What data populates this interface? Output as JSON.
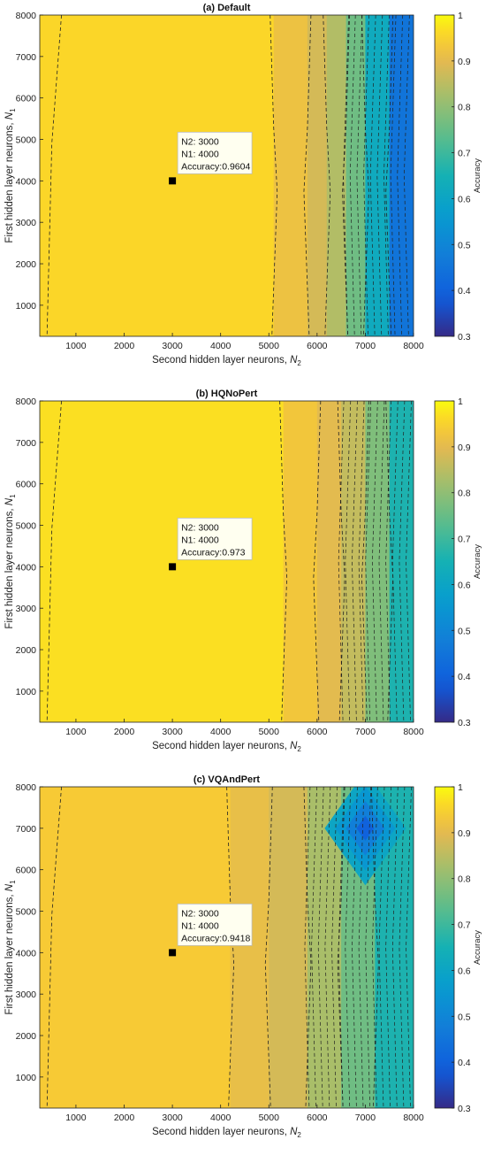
{
  "chart_data": [
    {
      "type": "contour",
      "title": "(a) Default",
      "xlabel": "Second hidden layer neurons,",
      "xlabel_sym": "N",
      "xlabel_sub": "2",
      "ylabel": "First hidden layer neurons,",
      "ylabel_sym": "N",
      "ylabel_sub": "1",
      "xlim": [
        250,
        8000
      ],
      "ylim": [
        250,
        8000
      ],
      "xticks": [
        1000,
        2000,
        3000,
        4000,
        5000,
        6000,
        7000,
        8000
      ],
      "yticks": [
        1000,
        2000,
        3000,
        4000,
        5000,
        6000,
        7000,
        8000
      ],
      "colorbar": {
        "label": "Accuracy",
        "range": [
          0.3,
          1
        ],
        "ticks": [
          "0.3",
          "0.4",
          "0.5",
          "0.6",
          "0.7",
          "0.8",
          "0.9",
          "1"
        ]
      },
      "bands": [
        {
          "x_start": 250,
          "x_end": 5100,
          "accuracy": 0.96
        },
        {
          "x_start": 5100,
          "x_end": 5800,
          "accuracy": 0.92
        },
        {
          "x_start": 5800,
          "x_end": 6200,
          "accuracy": 0.88
        },
        {
          "x_start": 6200,
          "x_end": 6600,
          "accuracy": 0.84
        },
        {
          "x_start": 6600,
          "x_end": 7000,
          "accuracy": 0.76
        },
        {
          "x_start": 7000,
          "x_end": 7500,
          "accuracy": 0.62
        },
        {
          "x_start": 7500,
          "x_end": 8000,
          "accuracy": 0.45
        }
      ],
      "datatip": {
        "x": 3000,
        "y": 4000,
        "lines": [
          "N2: 3000",
          "N1: 4000",
          "Accuracy:0.9604"
        ]
      }
    },
    {
      "type": "contour",
      "title": "(b) HQNoPert",
      "xlabel": "Second hidden layer neurons,",
      "xlabel_sym": "N",
      "xlabel_sub": "2",
      "ylabel": "First hidden layer neurons,",
      "ylabel_sym": "N",
      "ylabel_sub": "1",
      "xlim": [
        250,
        8000
      ],
      "ylim": [
        250,
        8000
      ],
      "xticks": [
        1000,
        2000,
        3000,
        4000,
        5000,
        6000,
        7000,
        8000
      ],
      "yticks": [
        1000,
        2000,
        3000,
        4000,
        5000,
        6000,
        7000,
        8000
      ],
      "colorbar": {
        "label": "Accuracy",
        "range": [
          0.3,
          1
        ],
        "ticks": [
          "0.3",
          "0.4",
          "0.5",
          "0.6",
          "0.7",
          "0.8",
          "0.9",
          "1"
        ]
      },
      "bands": [
        {
          "x_start": 250,
          "x_end": 5300,
          "accuracy": 0.97
        },
        {
          "x_start": 5300,
          "x_end": 6000,
          "accuracy": 0.93
        },
        {
          "x_start": 6000,
          "x_end": 6500,
          "accuracy": 0.9
        },
        {
          "x_start": 6500,
          "x_end": 7000,
          "accuracy": 0.86
        },
        {
          "x_start": 7000,
          "x_end": 7500,
          "accuracy": 0.78
        },
        {
          "x_start": 7500,
          "x_end": 8000,
          "accuracy": 0.66
        }
      ],
      "datatip": {
        "x": 3000,
        "y": 4000,
        "lines": [
          "N2: 3000",
          "N1: 4000",
          "Accuracy:0.973"
        ]
      }
    },
    {
      "type": "contour",
      "title": "(c) VQAndPert",
      "xlabel": "Second hidden layer neurons,",
      "xlabel_sym": "N",
      "xlabel_sub": "2",
      "ylabel": "First hidden layer neurons,",
      "ylabel_sym": "N",
      "ylabel_sub": "1",
      "xlim": [
        250,
        8000
      ],
      "ylim": [
        250,
        8000
      ],
      "xticks": [
        1000,
        2000,
        3000,
        4000,
        5000,
        6000,
        7000,
        8000
      ],
      "yticks": [
        1000,
        2000,
        3000,
        4000,
        5000,
        6000,
        7000,
        8000
      ],
      "colorbar": {
        "label": "Accuracy",
        "range": [
          0.3,
          1
        ],
        "ticks": [
          "0.3",
          "0.4",
          "0.5",
          "0.6",
          "0.7",
          "0.8",
          "0.9",
          "1"
        ]
      },
      "bands": [
        {
          "x_start": 250,
          "x_end": 4200,
          "accuracy": 0.94
        },
        {
          "x_start": 4200,
          "x_end": 5000,
          "accuracy": 0.91
        },
        {
          "x_start": 5000,
          "x_end": 5800,
          "accuracy": 0.88
        },
        {
          "x_start": 5800,
          "x_end": 6500,
          "accuracy": 0.83
        },
        {
          "x_start": 6500,
          "x_end": 7200,
          "accuracy": 0.76
        },
        {
          "x_start": 7200,
          "x_end": 8000,
          "accuracy": 0.66
        }
      ],
      "hotspot": {
        "x": 7000,
        "y": 7000,
        "accuracy": 0.4
      },
      "datatip": {
        "x": 3000,
        "y": 4000,
        "lines": [
          "N2: 3000",
          "N1: 4000",
          "Accuracy:0.9418"
        ]
      }
    }
  ]
}
